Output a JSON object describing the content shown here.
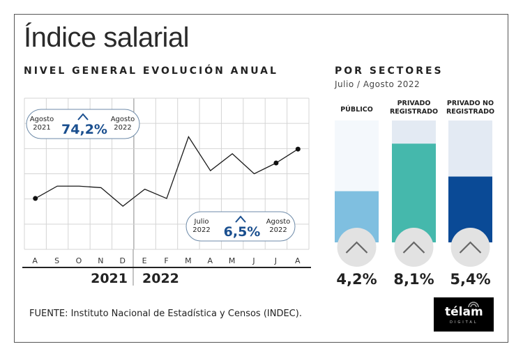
{
  "title": "Índice salarial",
  "subtitle": "NIVEL GENERAL EVOLUCIÓN ANUAL",
  "chart_data": [
    {
      "type": "line",
      "categories": [
        "A",
        "S",
        "O",
        "N",
        "D",
        "E",
        "F",
        "M",
        "A",
        "M",
        "J",
        "J",
        "A"
      ],
      "years": [
        "2021",
        "2022"
      ],
      "values": [
        3.3,
        4.1,
        4.1,
        4.0,
        2.8,
        3.9,
        3.3,
        7.3,
        5.1,
        6.2,
        4.9,
        5.6,
        6.5
      ],
      "ylim": [
        0,
        9.8
      ],
      "grid": true,
      "annotations": [
        {
          "from": "Agosto 2021",
          "from_l1": "Agosto",
          "from_l2": "2021",
          "to_l1": "Agosto",
          "to_l2": "2022",
          "value": "74,2%"
        },
        {
          "from_l1": "Julio",
          "from_l2": "2022",
          "to_l1": "Agosto",
          "to_l2": "2022",
          "value": "6,5%"
        }
      ]
    },
    {
      "type": "bar",
      "title": "POR SECTORES",
      "subtitle": "Julio / Agosto 2022",
      "categories": [
        [
          "PÚBLICO",
          ""
        ],
        [
          "PRIVADO",
          "REGISTRADO"
        ],
        [
          "PRIVADO NO",
          "REGISTRADO"
        ]
      ],
      "values": [
        4.2,
        8.1,
        5.4
      ],
      "labels": [
        "4,2%",
        "8,1%",
        "5,4%"
      ],
      "ylim": [
        0,
        10
      ],
      "colors": [
        "#7fbfe0",
        "#45b8ac",
        "#0a4a96"
      ],
      "track_colors": [
        "#f4f8fc",
        "#e3eaf3",
        "#e3eaf3"
      ]
    }
  ],
  "source": "FUENTE: Instituto Nacional de Estadística y Censos (INDEC).",
  "logo": {
    "text": "télam",
    "sub": "DIGITAL"
  },
  "colors": {
    "accent": "#1a4f8f",
    "line": "#1a1a1a",
    "grid": "#d4d4d4"
  }
}
